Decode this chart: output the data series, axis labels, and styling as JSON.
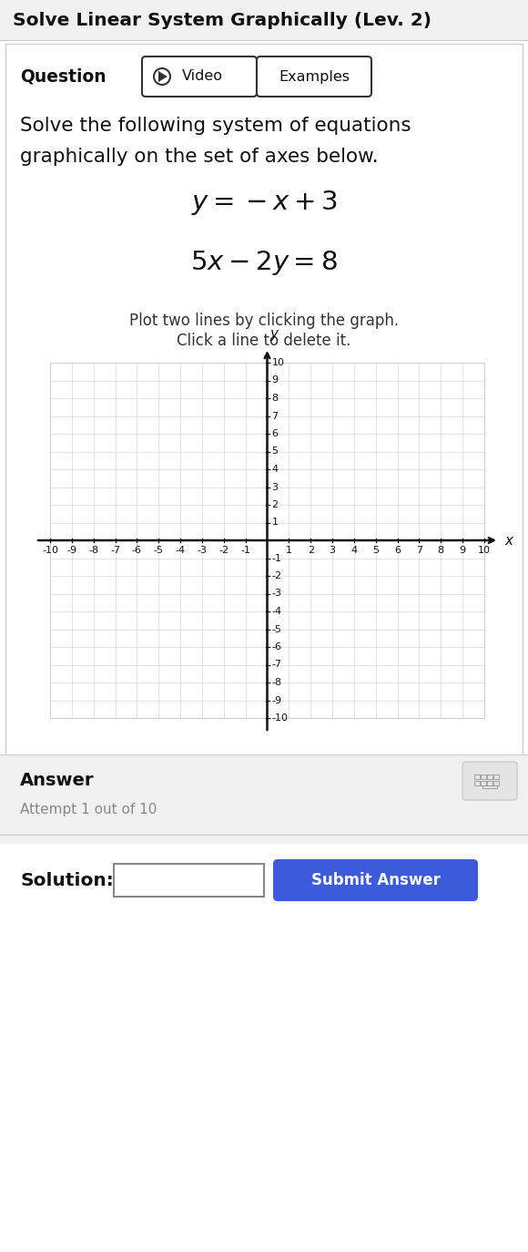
{
  "title": "Solve Linear System Graphically (Lev. 2)",
  "question_label": "Question",
  "video_btn": "▶ Video",
  "examples_btn": "Examples",
  "problem_line1": "Solve the following system of equations",
  "problem_line2": "graphically on the set of axes below.",
  "eq1_latex": "$y = -x + 3$",
  "eq2_latex": "$5x - 2y = 8$",
  "instruction_line1": "Plot two lines by clicking the graph.",
  "instruction_line2": "Click a line to delete it.",
  "answer_label": "Answer",
  "attempt_text": "Attempt 1 out of 10",
  "solution_label": "Solution:",
  "submit_btn": "Submit Answer",
  "bg_color": "#ffffff",
  "header_bg": "#f0f0f0",
  "answer_bg": "#f0f0f0",
  "grid_color": "#d8d8d8",
  "axis_color": "#111111",
  "submit_btn_color": "#3b5bdb",
  "submit_btn_text_color": "#ffffff",
  "attempt_color": "#888888",
  "border_color": "#cccccc"
}
